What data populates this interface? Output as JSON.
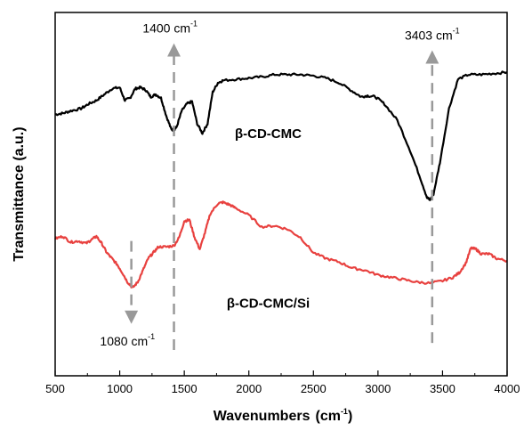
{
  "chart_data": {
    "type": "line",
    "title": "",
    "xlabel": "Wavenumbers",
    "xlabel_unit_base": "(cm",
    "xlabel_unit_sup": "-1",
    "xlabel_unit_close": ")",
    "ylabel": "Transmittance  (a.u.)",
    "xlim": [
      500,
      4000
    ],
    "xticks": [
      500,
      1000,
      1500,
      2000,
      2500,
      3000,
      3500,
      4000
    ],
    "grid": false,
    "colors": {
      "black_series": "#000000",
      "red_series": "#e8413f",
      "marker": "#999999"
    },
    "series": [
      {
        "name": "β-CD-CMC",
        "color": "#000000",
        "x": [
          500,
          560,
          620,
          700,
          760,
          820,
          880,
          940,
          1000,
          1040,
          1080,
          1120,
          1160,
          1200,
          1240,
          1280,
          1320,
          1360,
          1400,
          1420,
          1440,
          1480,
          1520,
          1560,
          1600,
          1640,
          1680,
          1720,
          1760,
          1800,
          1900,
          2000,
          2100,
          2200,
          2300,
          2400,
          2500,
          2600,
          2700,
          2800,
          2870,
          2920,
          2980,
          3050,
          3150,
          3250,
          3330,
          3380,
          3403,
          3430,
          3480,
          3550,
          3620,
          3700,
          3800,
          3900,
          4000
        ],
        "y": [
          0.13,
          0.14,
          0.16,
          0.18,
          0.22,
          0.25,
          0.3,
          0.35,
          0.36,
          0.25,
          0.27,
          0.35,
          0.36,
          0.34,
          0.28,
          0.3,
          0.27,
          0.12,
          0.0,
          0.0,
          0.02,
          0.16,
          0.22,
          0.24,
          0.05,
          -0.03,
          0.05,
          0.32,
          0.4,
          0.42,
          0.43,
          0.44,
          0.45,
          0.47,
          0.47,
          0.47,
          0.46,
          0.44,
          0.4,
          0.33,
          0.28,
          0.29,
          0.28,
          0.22,
          0.08,
          -0.18,
          -0.42,
          -0.58,
          -0.6,
          -0.55,
          -0.28,
          0.18,
          0.43,
          0.47,
          0.47,
          0.48,
          0.49
        ]
      },
      {
        "name": "β-CD-CMC/Si",
        "color": "#e8413f",
        "x": [
          500,
          560,
          620,
          680,
          740,
          780,
          820,
          860,
          900,
          940,
          980,
          1020,
          1060,
          1100,
          1140,
          1180,
          1220,
          1260,
          1300,
          1360,
          1420,
          1460,
          1500,
          1540,
          1580,
          1620,
          1660,
          1700,
          1760,
          1800,
          1850,
          1900,
          2000,
          2100,
          2200,
          2300,
          2400,
          2500,
          2600,
          2700,
          2800,
          2900,
          3000,
          3100,
          3200,
          3300,
          3403,
          3500,
          3580,
          3630,
          3680,
          3720,
          3760,
          3800,
          3860,
          3920,
          4000
        ],
        "y": [
          -0.93,
          -0.91,
          -0.96,
          -0.95,
          -0.97,
          -0.94,
          -0.91,
          -0.97,
          -1.05,
          -1.1,
          -1.15,
          -1.22,
          -1.3,
          -1.35,
          -1.3,
          -1.2,
          -1.1,
          -1.05,
          -1.0,
          -1.0,
          -0.99,
          -0.92,
          -0.78,
          -0.77,
          -0.92,
          -1.02,
          -0.88,
          -0.72,
          -0.63,
          -0.62,
          -0.64,
          -0.67,
          -0.73,
          -0.83,
          -0.82,
          -0.85,
          -0.92,
          -1.05,
          -1.1,
          -1.13,
          -1.18,
          -1.2,
          -1.24,
          -1.26,
          -1.28,
          -1.3,
          -1.31,
          -1.29,
          -1.26,
          -1.22,
          -1.14,
          -1.01,
          -1.02,
          -1.06,
          -1.06,
          -1.1,
          -1.12
        ]
      }
    ],
    "series_labels": [
      {
        "text": "β-CD-CMC",
        "x": 2150,
        "y": -0.07
      },
      {
        "text": "β-CD-CMC/Si",
        "x": 2150,
        "y": -1.52
      }
    ],
    "annotations": [
      {
        "base": "1400 cm",
        "sup": "-1",
        "marker_x": 1420,
        "text_x": 1390,
        "text_y": 0.83,
        "line_from": -1.88,
        "line_to": 0.68,
        "arrow": "up"
      },
      {
        "base": "3403 cm",
        "sup": "-1",
        "marker_x": 3420,
        "text_x": 3420,
        "text_y": 0.77,
        "line_from": -1.82,
        "line_to": 0.62,
        "arrow": "up"
      },
      {
        "base": "1080 cm",
        "sup": "-1",
        "marker_x": 1090,
        "text_x": 1060,
        "text_y": -1.84,
        "line_from": -0.95,
        "line_to": -1.6,
        "arrow": "down"
      }
    ]
  }
}
